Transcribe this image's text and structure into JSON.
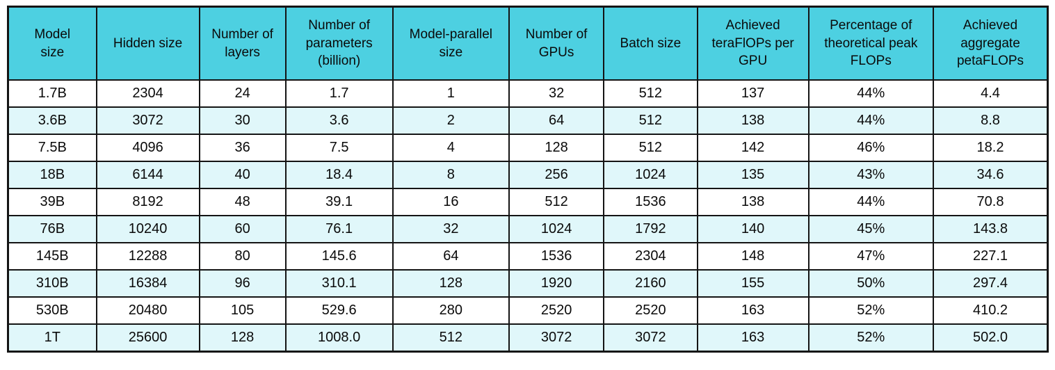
{
  "colors": {
    "header_bg": "#4DD0E1",
    "row_bg": "#FFFFFF",
    "row_alt_bg": "#E0F7FA",
    "border": "#141414",
    "text": "#0A0A0A"
  },
  "chart_data": {
    "type": "table",
    "title": "",
    "columns": [
      "Model size",
      "Hidden size",
      "Number of layers",
      "Number of parameters (billion)",
      "Model-parallel size",
      "Number of GPUs",
      "Batch size",
      "Achieved teraFlOPs per GPU",
      "Percentage of theoretical peak FLOPs",
      "Achieved aggregate petaFLOPs"
    ],
    "rows": [
      [
        "1.7B",
        "2304",
        "24",
        "1.7",
        "1",
        "32",
        "512",
        "137",
        "44%",
        "4.4"
      ],
      [
        "3.6B",
        "3072",
        "30",
        "3.6",
        "2",
        "64",
        "512",
        "138",
        "44%",
        "8.8"
      ],
      [
        "7.5B",
        "4096",
        "36",
        "7.5",
        "4",
        "128",
        "512",
        "142",
        "46%",
        "18.2"
      ],
      [
        "18B",
        "6144",
        "40",
        "18.4",
        "8",
        "256",
        "1024",
        "135",
        "43%",
        "34.6"
      ],
      [
        "39B",
        "8192",
        "48",
        "39.1",
        "16",
        "512",
        "1536",
        "138",
        "44%",
        "70.8"
      ],
      [
        "76B",
        "10240",
        "60",
        "76.1",
        "32",
        "1024",
        "1792",
        "140",
        "45%",
        "143.8"
      ],
      [
        "145B",
        "12288",
        "80",
        "145.6",
        "64",
        "1536",
        "2304",
        "148",
        "47%",
        "227.1"
      ],
      [
        "310B",
        "16384",
        "96",
        "310.1",
        "128",
        "1920",
        "2160",
        "155",
        "50%",
        "297.4"
      ],
      [
        "530B",
        "20480",
        "105",
        "529.6",
        "280",
        "2520",
        "2520",
        "163",
        "52%",
        "410.2"
      ],
      [
        "1T",
        "25600",
        "128",
        "1008.0",
        "512",
        "3072",
        "3072",
        "163",
        "52%",
        "502.0"
      ]
    ],
    "layout": {
      "column_width_percents": [
        8.5,
        9.9,
        8.3,
        10.3,
        11.2,
        9.1,
        9.0,
        10.7,
        12.0,
        11.0
      ],
      "header_rows": 1,
      "alternating_row_shading": true
    }
  }
}
